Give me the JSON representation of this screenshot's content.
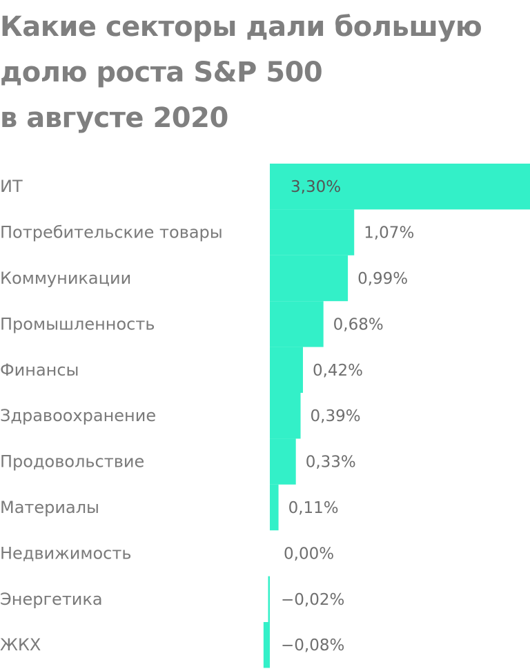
{
  "chart_data": {
    "type": "bar",
    "orientation": "horizontal",
    "title_lines": [
      "Какие секторы дали большую",
      "долю роста S&P 500",
      "в августе 2020"
    ],
    "categories": [
      "ИТ",
      "Потребительские товары",
      "Коммуникации",
      "Промышленность",
      "Финансы",
      "Здравоохранение",
      "Продовольствие",
      "Материалы",
      "Недвижимость",
      "Энергетика",
      "ЖКХ"
    ],
    "values": [
      3.3,
      1.07,
      0.99,
      0.68,
      0.42,
      0.39,
      0.33,
      0.11,
      0.0,
      -0.02,
      -0.08
    ],
    "value_labels": [
      "3,30%",
      "1,07%",
      "0,99%",
      "0,68%",
      "0,42%",
      "0,39%",
      "0,33%",
      "0,11%",
      "0,00%",
      "−0,02%",
      "−0,08%"
    ],
    "unit": "%",
    "grid": false,
    "legend": "none",
    "colors": {
      "bar": "#33f0c8",
      "title": "#7f7f7f",
      "label": "#7a7a7a"
    }
  }
}
